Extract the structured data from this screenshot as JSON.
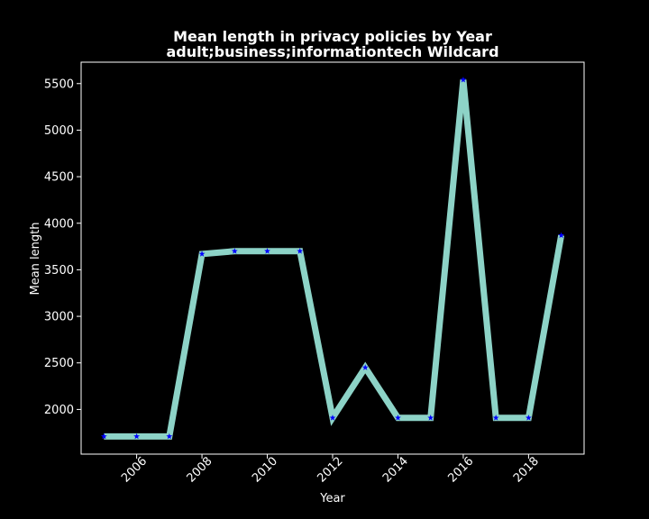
{
  "chart_data": {
    "type": "line",
    "title": "Mean length in privacy policies by Year",
    "subtitle": "adult;business;informationtech Wildcard",
    "xlabel": "Year",
    "ylabel": "Mean length",
    "x": [
      2005,
      2006,
      2007,
      2008,
      2009,
      2010,
      2011,
      2012,
      2013,
      2014,
      2015,
      2016,
      2017,
      2018,
      2019
    ],
    "series": [
      {
        "values": [
          1710,
          1710,
          1710,
          3670,
          3700,
          3700,
          3700,
          1910,
          2450,
          1910,
          1910,
          5540,
          1910,
          1910,
          3870
        ]
      }
    ],
    "x_ticks": [
      2006,
      2008,
      2010,
      2012,
      2014,
      2016,
      2018
    ],
    "y_ticks": [
      2000,
      2500,
      3000,
      3500,
      4000,
      4500,
      5000,
      5500
    ],
    "xlim": [
      2004.3,
      2019.7
    ],
    "ylim": [
      1520,
      5730
    ],
    "grid": false,
    "colors": {
      "background": "#000000",
      "line": "#8dd3c7",
      "marker": "#0000ff",
      "text": "#ffffff",
      "axes": "#ffffff"
    }
  }
}
